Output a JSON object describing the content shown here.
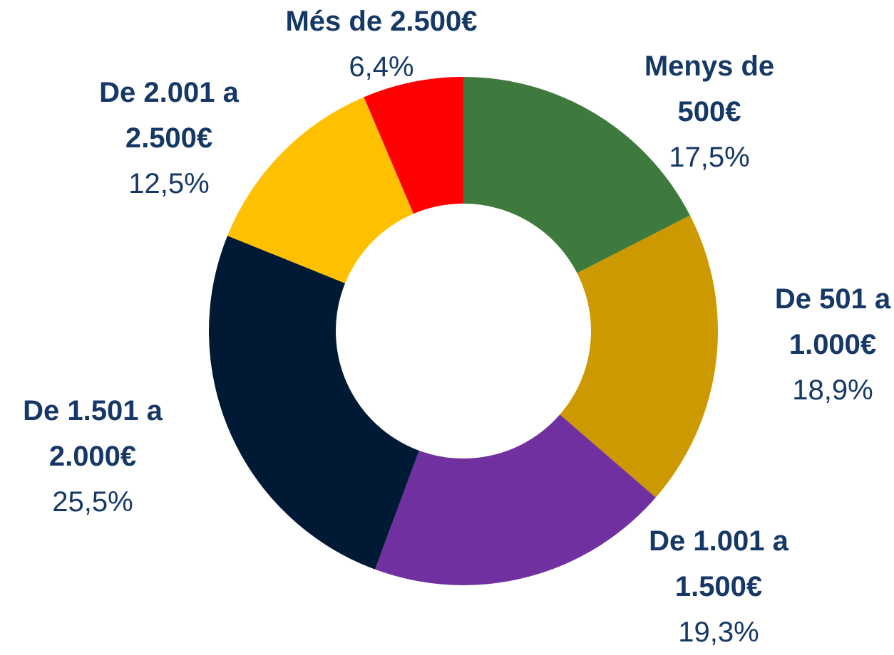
{
  "chart_data": {
    "type": "donut",
    "categories": [
      "Menys de 500€",
      "De 501 a 1.000€",
      "De 1.001 a 1.500€",
      "De 1.501 a 2.000€",
      "De 2.001 a 2.500€",
      "Més de 2.500€"
    ],
    "values": [
      17.5,
      18.9,
      19.3,
      25.5,
      12.5,
      6.4
    ],
    "value_labels": [
      "17,5%",
      "18,9%",
      "19,3%",
      "25,5%",
      "12,5%",
      "6,4%"
    ],
    "colors": [
      "#3e7a3e",
      "#cc9900",
      "#7030a0",
      "#001a36",
      "#ffc000",
      "#ff0000"
    ]
  }
}
